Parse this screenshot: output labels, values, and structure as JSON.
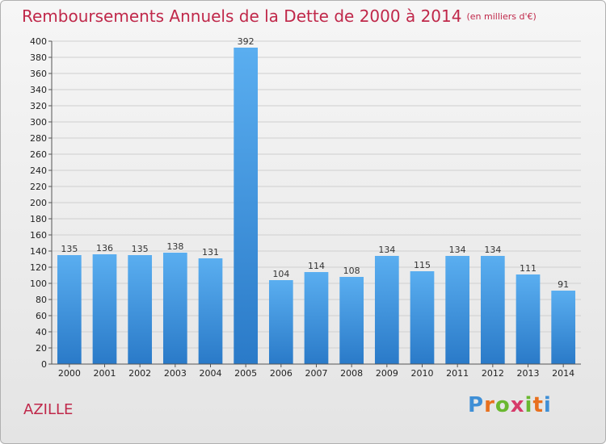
{
  "header": {
    "title": "Remboursements Annuels de la Dette de 2000 à 2014",
    "unit": "(en milliers d'€)"
  },
  "footer": {
    "location": "AZILLE",
    "logo_text": "Proxiti"
  },
  "colors": {
    "accent": "#c0284a",
    "bar_light": "#5aaef0",
    "bar_dark": "#2a7ac8"
  },
  "chart_data": {
    "type": "bar",
    "title": "Remboursements Annuels de la Dette de 2000 à 2014",
    "subtitle": "(en milliers d'€)",
    "xlabel": "",
    "ylabel": "",
    "categories": [
      "2000",
      "2001",
      "2002",
      "2003",
      "2004",
      "2005",
      "2006",
      "2007",
      "2008",
      "2009",
      "2010",
      "2011",
      "2012",
      "2013",
      "2014"
    ],
    "values": [
      135,
      136,
      135,
      138,
      131,
      392,
      104,
      114,
      108,
      134,
      115,
      134,
      134,
      111,
      91
    ],
    "ylim": [
      0,
      400
    ],
    "yticks": [
      0,
      20,
      40,
      60,
      80,
      100,
      120,
      140,
      160,
      180,
      200,
      220,
      240,
      260,
      280,
      300,
      320,
      340,
      360,
      380,
      400
    ],
    "grid": true,
    "legend": "none"
  }
}
